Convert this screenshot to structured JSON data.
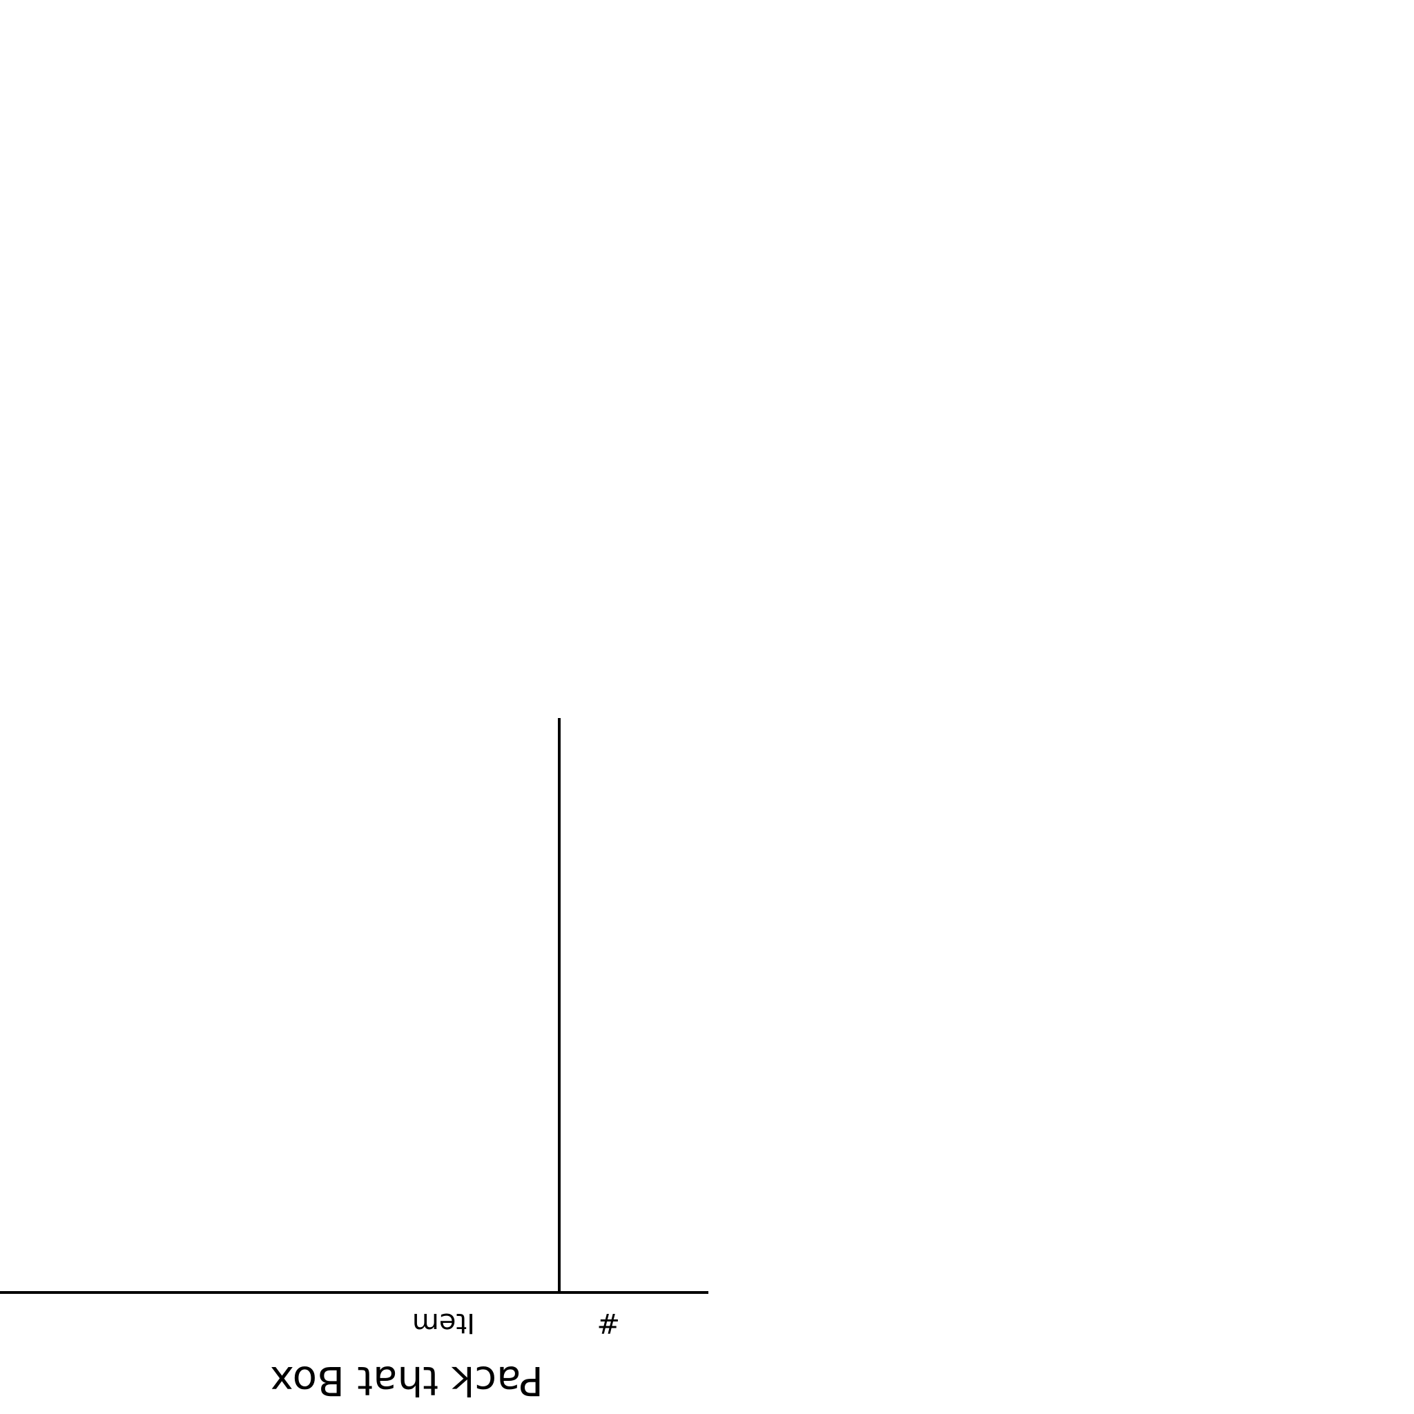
{
  "form": {
    "title": "Pack that Box",
    "columns": [
      "#",
      "Item"
    ]
  }
}
